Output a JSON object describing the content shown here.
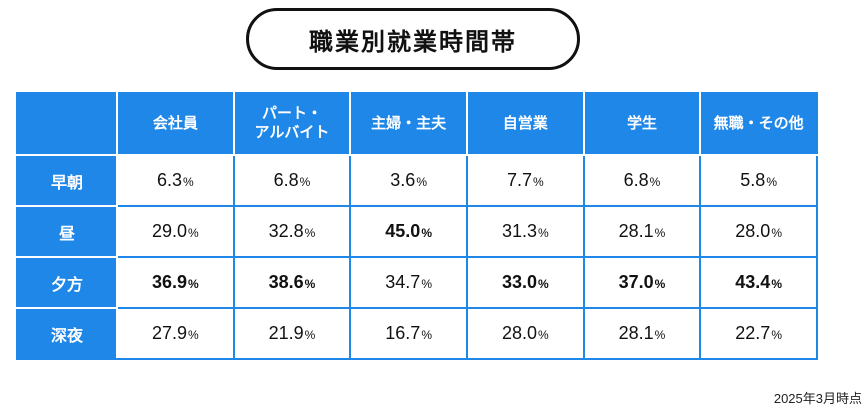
{
  "title": "職業別就業時間帯",
  "footnote": "2025年3月時点",
  "colors": {
    "header_blue": "#1f87e8",
    "highlight_green": "#19a85a"
  },
  "chart_data": {
    "type": "table",
    "title": "職業別就業時間帯",
    "unit": "%",
    "columns": [
      "会社員",
      "パート・\nアルバイト",
      "主婦・主夫",
      "自営業",
      "学生",
      "無職・その他"
    ],
    "rows": [
      {
        "label": "早朝",
        "values": [
          "6.3",
          "6.8",
          "3.6",
          "7.7",
          "6.8",
          "5.8"
        ],
        "highlight": [
          false,
          false,
          false,
          false,
          false,
          false
        ]
      },
      {
        "label": "昼",
        "values": [
          "29.0",
          "32.8",
          "45.0",
          "31.3",
          "28.1",
          "28.0"
        ],
        "highlight": [
          false,
          false,
          true,
          false,
          false,
          false
        ]
      },
      {
        "label": "夕方",
        "values": [
          "36.9",
          "38.6",
          "34.7",
          "33.0",
          "37.0",
          "43.4"
        ],
        "highlight": [
          true,
          true,
          false,
          true,
          true,
          true
        ]
      },
      {
        "label": "深夜",
        "values": [
          "27.9",
          "21.9",
          "16.7",
          "28.0",
          "28.1",
          "22.7"
        ],
        "highlight": [
          false,
          false,
          false,
          false,
          false,
          false
        ]
      }
    ]
  }
}
